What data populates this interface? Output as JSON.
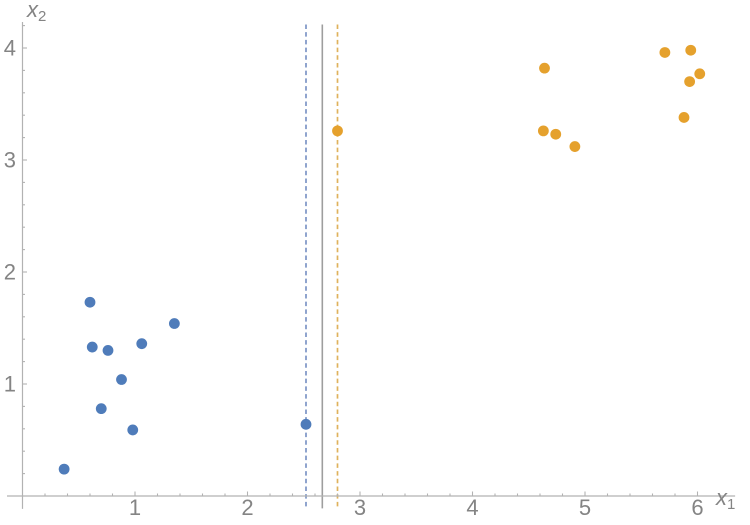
{
  "chart_data": {
    "type": "scatter",
    "title": "",
    "xlabel_base": "x",
    "xlabel_sub": "1",
    "ylabel_base": "x",
    "ylabel_sub": "2",
    "xlim": [
      -0.14,
      6.13
    ],
    "ylim": [
      -0.11,
      4.21
    ],
    "x_major_ticks": [
      1,
      2,
      3,
      4,
      5,
      6
    ],
    "y_major_ticks": [
      1,
      2,
      3,
      4
    ],
    "minor_tick_step": 0.2,
    "grid": false,
    "legend": "none",
    "series": [
      {
        "name": "class-1-blue",
        "color": "#4F7CBA",
        "marker": "circle",
        "points": [
          [
            0.6,
            1.73
          ],
          [
            1.35,
            1.54
          ],
          [
            0.62,
            1.33
          ],
          [
            0.76,
            1.3
          ],
          [
            1.06,
            1.36
          ],
          [
            0.88,
            1.04
          ],
          [
            0.7,
            0.78
          ],
          [
            0.98,
            0.59
          ],
          [
            0.37,
            0.24
          ],
          [
            2.52,
            0.64
          ]
        ]
      },
      {
        "name": "class-2-orange",
        "color": "#E5A12D",
        "marker": "circle",
        "points": [
          [
            4.64,
            3.82
          ],
          [
            5.71,
            3.96
          ],
          [
            5.94,
            3.98
          ],
          [
            6.02,
            3.77
          ],
          [
            5.93,
            3.7
          ],
          [
            5.88,
            3.38
          ],
          [
            4.63,
            3.26
          ],
          [
            4.74,
            3.23
          ],
          [
            4.91,
            3.12
          ],
          [
            2.8,
            3.26
          ]
        ]
      }
    ],
    "vlines": [
      {
        "name": "margin-line-blue",
        "x": 2.52,
        "style": "dashed",
        "color": "#7C95C5"
      },
      {
        "name": "decision-boundary",
        "x": 2.665,
        "style": "solid",
        "color": "#9E9E9E"
      },
      {
        "name": "margin-line-orange",
        "x": 2.8,
        "style": "dashed",
        "color": "#DFB25C"
      }
    ],
    "axis_color": "#B2B2B2",
    "tick_label_color": "#848484"
  }
}
